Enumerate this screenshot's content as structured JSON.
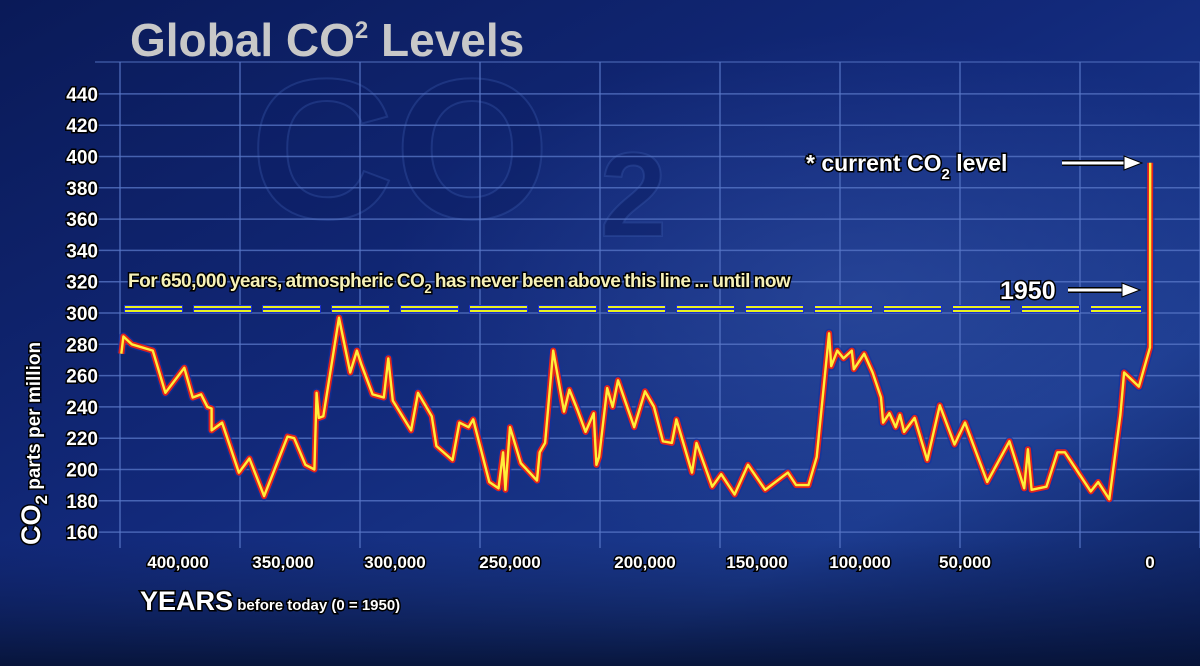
{
  "title": {
    "main": "Global CO",
    "sup": "2",
    "rest": " Levels"
  },
  "watermark": {
    "text": "CO",
    "sub": "2"
  },
  "colors": {
    "background": "#0b1c5c",
    "grid": "#5a78c8",
    "title": "#c8c8c8",
    "line_outer": "#e3241b",
    "line_inner": "#ffef3a",
    "threshold": "#e8f020",
    "annotation": "#f6f1b8"
  },
  "chart_data": {
    "type": "line",
    "title": "Global CO² Levels",
    "xlabel": {
      "main": "YEARS",
      "rest": " before today (0 = 1950)"
    },
    "ylabel": {
      "main": "CO",
      "sub": "2",
      "rest": " parts per million"
    },
    "x_reversed": true,
    "xlim": [
      427000,
      -60
    ],
    "ylim": [
      150,
      450
    ],
    "grid": true,
    "legend": "none",
    "x_ticks": [
      {
        "value": 400000,
        "label": "400,000"
      },
      {
        "value": 350000,
        "label": "350,000"
      },
      {
        "value": 300000,
        "label": "300,000"
      },
      {
        "value": 250000,
        "label": "250,000"
      },
      {
        "value": 200000,
        "label": "200,000"
      },
      {
        "value": 150000,
        "label": "150,000"
      },
      {
        "value": 100000,
        "label": "100,000"
      },
      {
        "value": 50000,
        "label": "50,000"
      },
      {
        "value": 0,
        "label": "0"
      }
    ],
    "y_ticks": [
      "160",
      "180",
      "200",
      "220",
      "240",
      "260",
      "280",
      "300",
      "320",
      "340",
      "360",
      "380",
      "400",
      "420",
      "440"
    ],
    "series": [
      {
        "x": [
          427000,
          426000,
          422000,
          412000,
          406000,
          397000,
          393000,
          389000,
          386000,
          384000,
          384000,
          379000,
          371000,
          366000,
          359000,
          348000,
          345000,
          340000,
          336000,
          335000,
          334000,
          332000,
          325000,
          320000,
          317000,
          315000,
          310000,
          305000,
          303000,
          301000,
          293000,
          290000,
          284000,
          282000,
          275000,
          272000,
          268000,
          266000,
          259000,
          255000,
          253000,
          252000,
          250000,
          246000,
          240000,
          239000,
          237000,
          234000,
          230000,
          228000,
          225000,
          222000,
          219000,
          218000,
          217000,
          214000,
          212000,
          210000,
          204000,
          200000,
          196000,
          192000,
          188000,
          186000,
          179000,
          177000,
          170000,
          166000,
          160000,
          154000,
          146000,
          135000,
          131000,
          125000,
          121000,
          115000,
          114000,
          111000,
          108000,
          104000,
          103000,
          98000,
          94000,
          90000,
          89000,
          86000,
          83000,
          81000,
          79000,
          74000,
          68000,
          62000,
          55000,
          50000,
          44000,
          38000,
          34000,
          33000,
          32000,
          28000,
          25000,
          23000,
          16000,
          14000,
          11000,
          8000,
          7000,
          3000,
          0,
          0,
          -60
        ],
        "y": [
          274,
          285,
          280,
          276,
          249,
          265,
          246,
          248,
          240,
          239,
          225,
          230,
          198,
          207,
          183,
          221,
          220,
          203,
          200,
          249,
          233,
          234,
          297,
          262,
          276,
          267,
          248,
          246,
          271,
          244,
          225,
          249,
          234,
          215,
          206,
          230,
          227,
          232,
          192,
          188,
          211,
          187,
          227,
          204,
          193,
          211,
          217,
          276,
          237,
          251,
          238,
          224,
          236,
          203,
          208,
          252,
          240,
          257,
          227,
          250,
          240,
          218,
          217,
          232,
          198,
          217,
          189,
          197,
          184,
          203,
          187,
          198,
          190,
          190,
          208,
          287,
          266,
          276,
          271,
          276,
          264,
          274,
          262,
          246,
          230,
          236,
          227,
          235,
          224,
          233,
          206,
          241,
          216,
          230,
          192,
          218,
          188,
          213,
          187,
          189,
          211,
          211,
          186,
          192,
          181,
          235,
          262,
          253,
          278,
          308,
          396
        ]
      }
    ],
    "threshold": {
      "value": 300
    },
    "annotations": {
      "threshold_text": {
        "pre": "For 650,000 years, atmospheric CO",
        "sub": "2",
        "post": " has never been above this line ... until now"
      },
      "current": {
        "pre": "* current CO",
        "sub": "2",
        "post": " level",
        "value": 396
      },
      "year_1950": {
        "label": "1950",
        "value": 315
      }
    }
  }
}
